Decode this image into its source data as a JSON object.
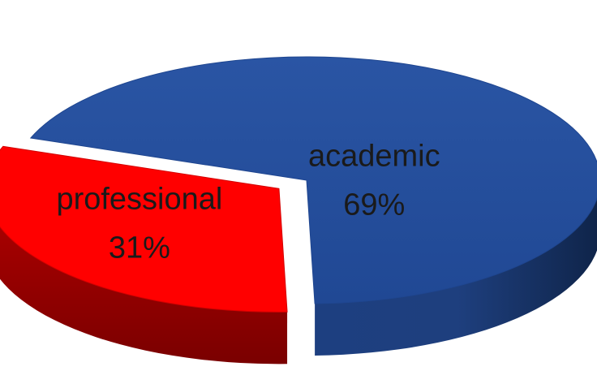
{
  "chart_data": {
    "type": "pie",
    "style": "3d",
    "legend": "none",
    "slices": [
      {
        "label": "academic",
        "value": 69,
        "value_label": "69%",
        "color": "#234c9a",
        "exploded": false
      },
      {
        "label": "professional",
        "value": 31,
        "value_label": "31%",
        "color": "#ff0000",
        "exploded": true
      }
    ]
  }
}
